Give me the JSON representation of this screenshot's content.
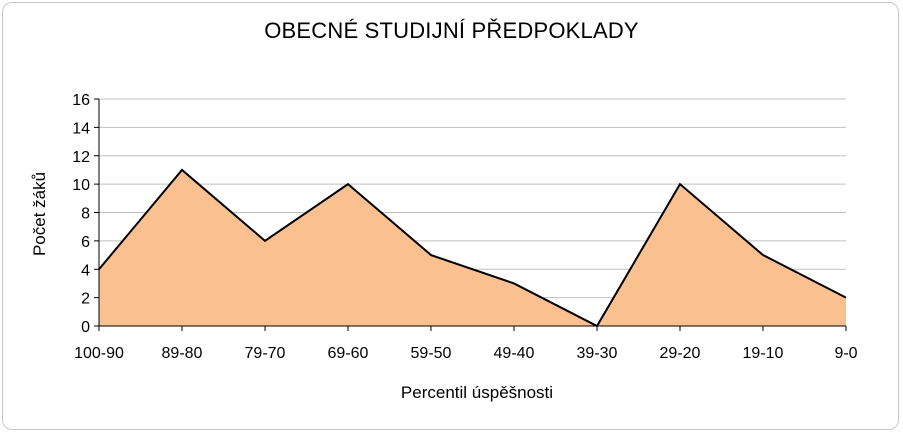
{
  "chart_data": {
    "type": "area",
    "title": "OBECNÉ STUDIJNÍ PŘEDPOKLADY",
    "xlabel": "Percentil úspěšnosti",
    "ylabel": "Počet žáků",
    "categories": [
      "100-90",
      "89-80",
      "79-70",
      "69-60",
      "59-50",
      "49-40",
      "39-30",
      "29-20",
      "19-10",
      "9-0"
    ],
    "values": [
      4,
      11,
      6,
      10,
      5,
      3,
      0,
      10,
      5,
      2
    ],
    "ylim": [
      0,
      16
    ],
    "yticks": [
      0,
      2,
      4,
      6,
      8,
      10,
      12,
      14,
      16
    ],
    "grid": true,
    "fill_color": "#FAC090",
    "line_color": "#000000",
    "grid_color": "#C0C0C0"
  }
}
